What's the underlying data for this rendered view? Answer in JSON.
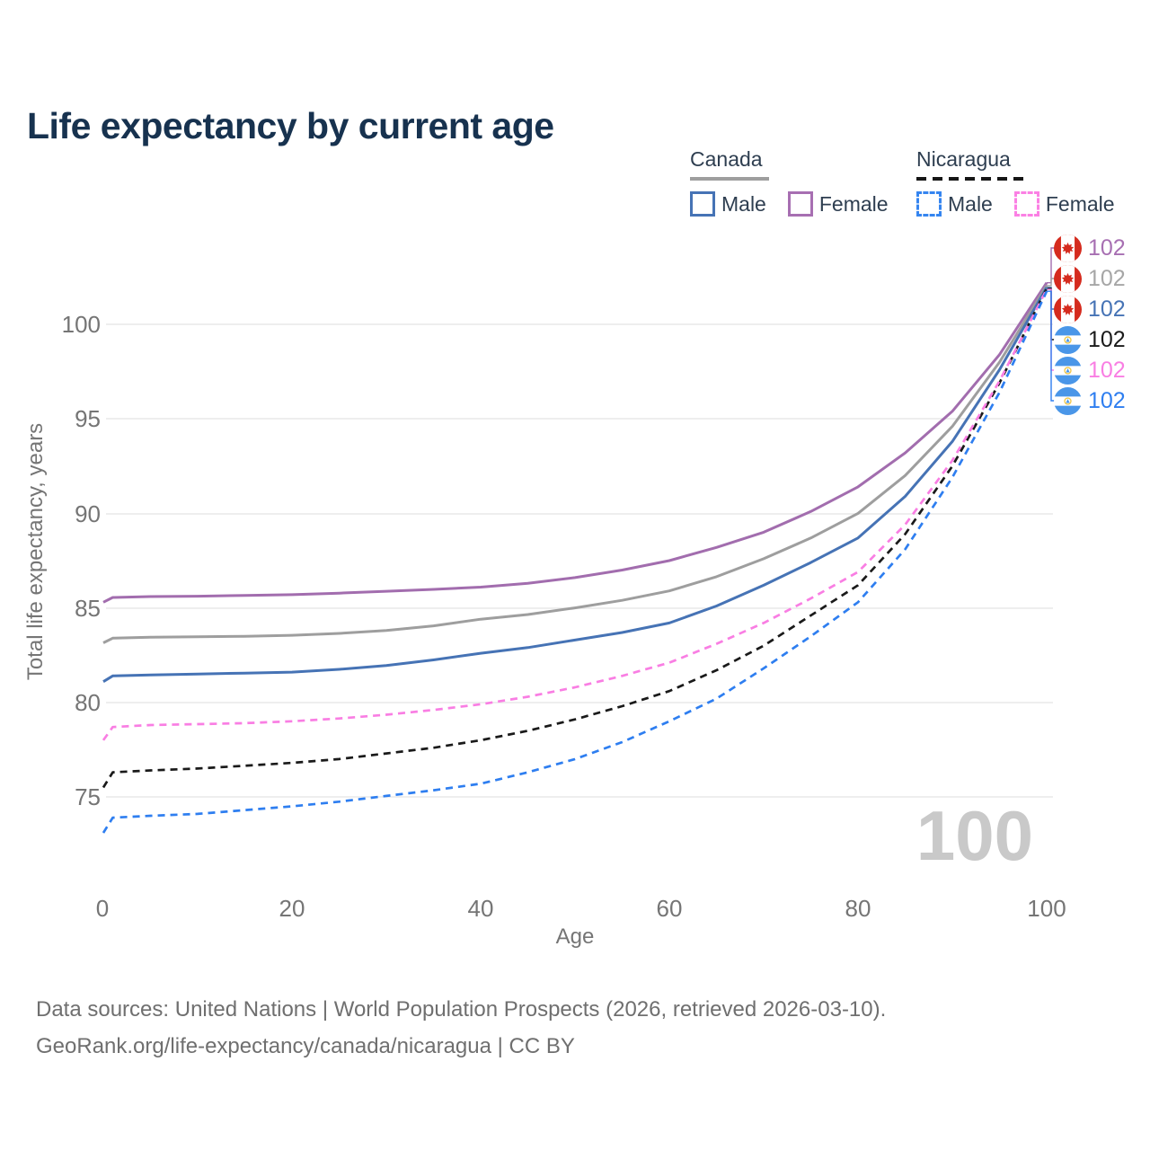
{
  "title": "Life expectancy by current age",
  "legend": {
    "canada": {
      "label": "Canada",
      "male_label": "Male",
      "female_label": "Female"
    },
    "nicaragua": {
      "label": "Nicaragua",
      "male_label": "Male",
      "female_label": "Female"
    }
  },
  "axes": {
    "x_title": "Age",
    "y_title": "Total life expectancy, years",
    "x_ticks": [
      "0",
      "20",
      "40",
      "60",
      "80",
      "100"
    ],
    "y_ticks": [
      "100",
      "95",
      "90",
      "85",
      "80",
      "75"
    ]
  },
  "watermark": "100",
  "end_labels": [
    {
      "flag": "canada",
      "series": "Canada Female",
      "value": "102",
      "color": "#a76fb2"
    },
    {
      "flag": "canada",
      "series": "Canada Both",
      "value": "102",
      "color": "#a6a6a6"
    },
    {
      "flag": "canada",
      "series": "Canada Male",
      "value": "102",
      "color": "#4673b5"
    },
    {
      "flag": "nicaragua",
      "series": "Nicaragua Both",
      "value": "102",
      "color": "#1a1a1a"
    },
    {
      "flag": "nicaragua",
      "series": "Nicaragua Female",
      "value": "102",
      "color": "#f97ee3"
    },
    {
      "flag": "nicaragua",
      "series": "Nicaragua Male",
      "value": "102",
      "color": "#2e7ef0"
    }
  ],
  "footer": {
    "line1": "Data sources: United Nations | World Population Prospects (2026, retrieved 2026-03-10).",
    "line2": "GeoRank.org/life-expectancy/canada/nicaragua | CC BY"
  },
  "chart_data": {
    "type": "line",
    "title": "Life expectancy by current age",
    "xlabel": "Age",
    "ylabel": "Total life expectancy, years",
    "xlim": [
      0,
      100
    ],
    "ylim": [
      72.5,
      103
    ],
    "xticks": [
      0,
      20,
      40,
      60,
      80,
      100
    ],
    "yticks": [
      75,
      80,
      85,
      90,
      95,
      100
    ],
    "grid": "horizontal-only",
    "legend_position": "top-right",
    "x": [
      0,
      1,
      5,
      10,
      15,
      20,
      25,
      30,
      35,
      40,
      45,
      50,
      55,
      60,
      65,
      70,
      75,
      80,
      85,
      90,
      95,
      100
    ],
    "series": [
      {
        "name": "Canada Female",
        "country": "Canada",
        "sex": "female",
        "color": "#a26dae",
        "dashed": false,
        "y": [
          85.3,
          85.55,
          85.6,
          85.62,
          85.66,
          85.7,
          85.78,
          85.88,
          85.98,
          86.1,
          86.3,
          86.6,
          87.0,
          87.5,
          88.2,
          89.0,
          90.1,
          91.4,
          93.2,
          95.4,
          98.4,
          102.2
        ]
      },
      {
        "name": "Canada Both",
        "country": "Canada",
        "sex": "both",
        "color": "#9e9e9e",
        "dashed": false,
        "y": [
          83.15,
          83.4,
          83.45,
          83.47,
          83.5,
          83.55,
          83.65,
          83.8,
          84.05,
          84.4,
          84.65,
          85.0,
          85.4,
          85.9,
          86.65,
          87.6,
          88.7,
          90.0,
          92.0,
          94.6,
          98.0,
          102.05
        ]
      },
      {
        "name": "Canada Male",
        "country": "Canada",
        "sex": "male",
        "color": "#4673b5",
        "dashed": false,
        "y": [
          81.1,
          81.4,
          81.45,
          81.5,
          81.55,
          81.6,
          81.75,
          81.95,
          82.25,
          82.6,
          82.9,
          83.3,
          83.7,
          84.2,
          85.1,
          86.2,
          87.4,
          88.7,
          90.9,
          93.8,
          97.6,
          101.95
        ]
      },
      {
        "name": "Nicaragua Both",
        "country": "Nicaragua",
        "sex": "both",
        "color": "#1a1a1a",
        "dashed": true,
        "y": [
          75.5,
          76.3,
          76.4,
          76.5,
          76.65,
          76.8,
          77.0,
          77.3,
          77.6,
          78.0,
          78.5,
          79.1,
          79.8,
          80.6,
          81.7,
          83.0,
          84.6,
          86.2,
          88.9,
          92.5,
          96.9,
          101.9
        ]
      },
      {
        "name": "Nicaragua Female",
        "country": "Nicaragua",
        "sex": "female",
        "color": "#f97ee3",
        "dashed": true,
        "y": [
          78.0,
          78.7,
          78.8,
          78.85,
          78.9,
          79.0,
          79.15,
          79.35,
          79.6,
          79.9,
          80.3,
          80.8,
          81.4,
          82.1,
          83.1,
          84.2,
          85.5,
          86.9,
          89.4,
          92.8,
          97.0,
          101.85
        ]
      },
      {
        "name": "Nicaragua Male",
        "country": "Nicaragua",
        "sex": "male",
        "color": "#2e7ef0",
        "dashed": true,
        "y": [
          73.1,
          73.9,
          74.0,
          74.1,
          74.3,
          74.5,
          74.75,
          75.05,
          75.35,
          75.7,
          76.3,
          77.0,
          77.9,
          79.0,
          80.2,
          81.8,
          83.5,
          85.3,
          88.1,
          91.9,
          96.4,
          101.75
        ]
      }
    ]
  }
}
